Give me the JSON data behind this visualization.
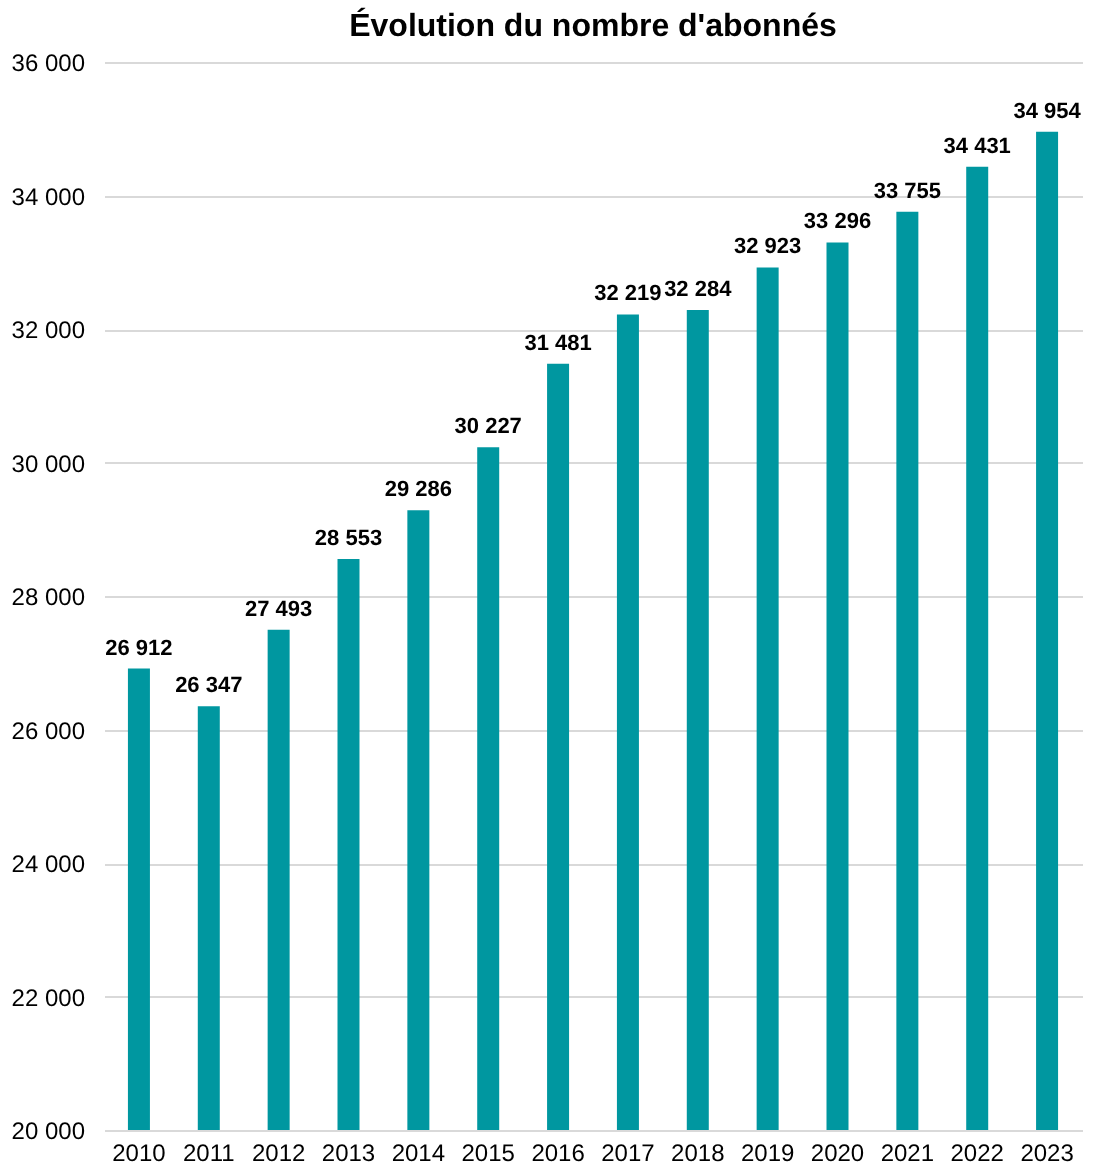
{
  "chart_data": {
    "type": "bar",
    "title": "Évolution du nombre d'abonnés",
    "categories": [
      "2010",
      "2011",
      "2012",
      "2013",
      "2014",
      "2015",
      "2016",
      "2017",
      "2018",
      "2019",
      "2020",
      "2021",
      "2022",
      "2023"
    ],
    "values": [
      26912,
      26347,
      27493,
      28553,
      29286,
      30227,
      31481,
      32219,
      32284,
      32923,
      33296,
      33755,
      34431,
      34954
    ],
    "value_labels": [
      "26 912",
      "26 347",
      "27 493",
      "28 553",
      "29 286",
      "30 227",
      "31 481",
      "32 219",
      "32 284",
      "32 923",
      "33 296",
      "33 755",
      "34 431",
      "34 954"
    ],
    "color": "#0097a0",
    "ylim": [
      20000,
      36000
    ],
    "yticks": [
      {
        "value": 20000,
        "label": "20 000"
      },
      {
        "value": 22000,
        "label": "22 000"
      },
      {
        "value": 24000,
        "label": "24 000"
      },
      {
        "value": 26000,
        "label": "26 000"
      },
      {
        "value": 28000,
        "label": "28 000"
      },
      {
        "value": 30000,
        "label": "30 000"
      },
      {
        "value": 32000,
        "label": "32 000"
      },
      {
        "value": 34000,
        "label": "34 000"
      },
      {
        "value": 36000,
        "label": "36 000"
      }
    ],
    "grid": "y"
  }
}
